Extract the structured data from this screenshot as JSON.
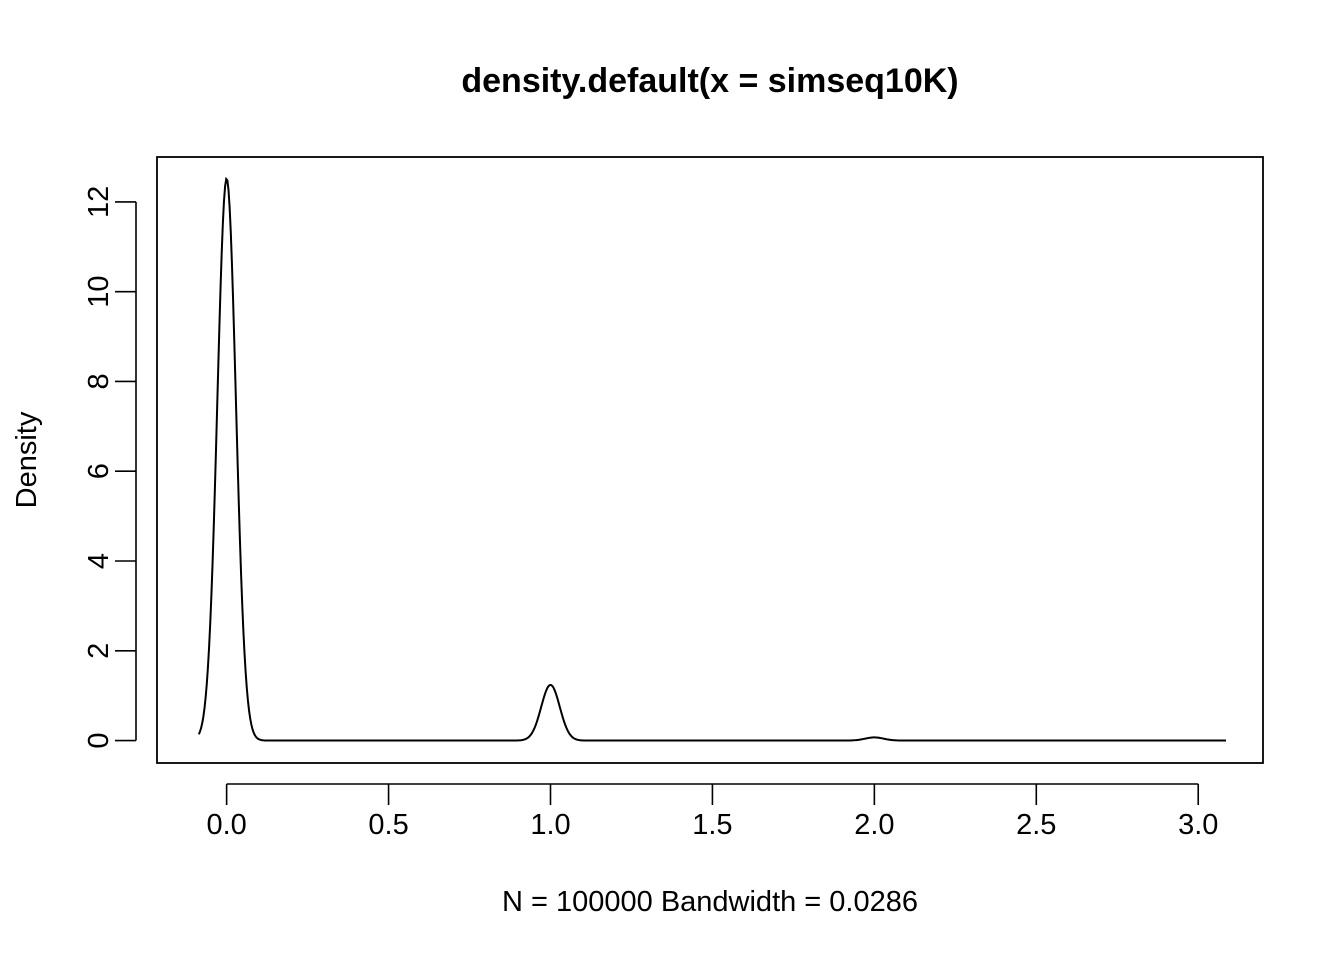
{
  "chart_data": {
    "type": "line",
    "title": "density.default(x = simseq10K)",
    "xlabel": "N = 100000   Bandwidth = 0.0286",
    "ylabel": "Density",
    "xlim": [
      -0.215,
      3.2
    ],
    "ylim": [
      -0.5,
      13.0
    ],
    "x_ticks": [
      0.0,
      0.5,
      1.0,
      1.5,
      2.0,
      2.5,
      3.0
    ],
    "x_tick_labels": [
      "0.0",
      "0.5",
      "1.0",
      "1.5",
      "2.0",
      "2.5",
      "3.0"
    ],
    "y_ticks": [
      0,
      2,
      4,
      6,
      8,
      10,
      12
    ],
    "y_tick_labels": [
      "0",
      "2",
      "4",
      "6",
      "8",
      "10",
      "12"
    ],
    "grid": false,
    "series": [
      {
        "x_range": [
          -0.0858,
          3.0858
        ],
        "peaks": [
          {
            "x": 0.0,
            "y": 12.52
          },
          {
            "x": 1.0,
            "y": 1.24
          },
          {
            "x": 2.0,
            "y": 0.07
          }
        ],
        "bandwidth": 0.0286
      }
    ]
  }
}
